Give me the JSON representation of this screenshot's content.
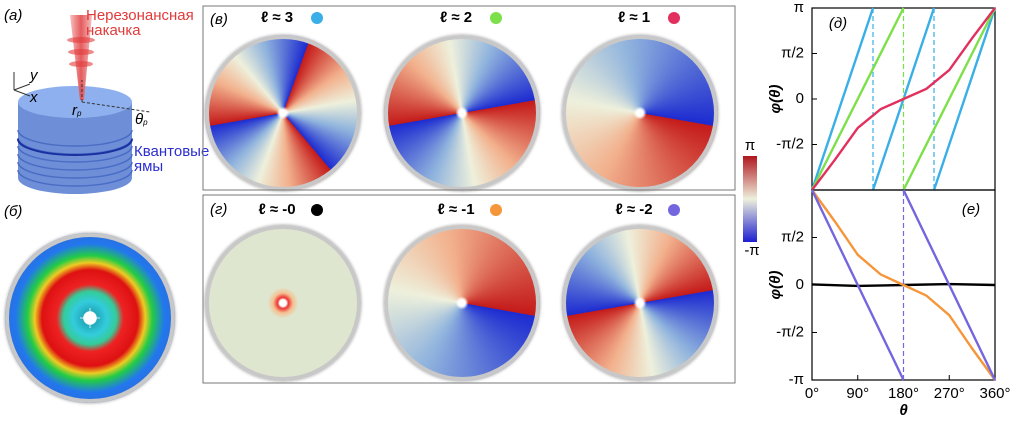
{
  "panel_a": {
    "label": "(а)",
    "pump_lines": [
      "Нерезонансная",
      "накачка"
    ],
    "axis_y": "y",
    "axis_x": "x",
    "radius": {
      "main": "r",
      "sub": "p"
    },
    "angle": {
      "main": "θ",
      "sub": "p"
    },
    "wells_lines": [
      "Квантовые",
      "ямы"
    ]
  },
  "panel_b": {
    "label": "(б)"
  },
  "panel_v": {
    "label": "(в)"
  },
  "panel_g": {
    "label": "(г)"
  },
  "colorbar": {
    "max_label": "π",
    "min_label": "-π"
  },
  "chart_data": [
    {
      "type": "line",
      "panel_label": "(д)",
      "ylabel": "φ(θ)",
      "xlim": [
        0,
        360
      ],
      "ylim": [
        -3.1416,
        3.1416
      ],
      "yticks": [
        {
          "value": 3.1416,
          "label": "π"
        },
        {
          "value": 1.5708,
          "label": "π/2"
        },
        0,
        {
          "value": -1.5708,
          "label": "-π/2"
        }
      ],
      "series": [
        {
          "name": "ℓ ≈ 3",
          "color": "#3aaee6",
          "x": [
            0,
            120,
            120,
            120,
            240,
            240,
            240,
            360
          ],
          "values": [
            -3.1416,
            3.1416,
            null,
            -3.1416,
            3.1416,
            null,
            -3.1416,
            3.1416
          ]
        },
        {
          "name": "ℓ ≈ 2",
          "color": "#7ddf4a",
          "x": [
            0,
            180,
            180,
            180,
            360
          ],
          "values": [
            -3.1416,
            3.1416,
            null,
            -3.1416,
            3.1416
          ]
        },
        {
          "name": "ℓ ≈ 1",
          "color": "#e2305e",
          "x": [
            0,
            45,
            90,
            135,
            180,
            225,
            270,
            315,
            360
          ],
          "values": [
            -3.1416,
            -2.1,
            -1.0,
            -0.35,
            0,
            0.35,
            1.0,
            2.1,
            3.1416
          ]
        }
      ]
    },
    {
      "type": "line",
      "panel_label": "(е)",
      "ylabel": "φ(θ)",
      "xlabel": "θ",
      "xlim": [
        0,
        360
      ],
      "ylim": [
        -3.1416,
        3.1416
      ],
      "xticks": [
        {
          "value": 0,
          "label": "0°"
        },
        {
          "value": 90,
          "label": "90°"
        },
        {
          "value": 180,
          "label": "180°"
        },
        {
          "value": 270,
          "label": "270°"
        },
        {
          "value": 360,
          "label": "360°"
        }
      ],
      "yticks": [
        {
          "value": 1.5708,
          "label": "π/2"
        },
        0,
        {
          "value": -1.5708,
          "label": "-π/2"
        },
        {
          "value": -3.1416,
          "label": "-π"
        }
      ],
      "series": [
        {
          "name": "ℓ ≈ -0",
          "color": "#000000",
          "x": [
            0,
            90,
            180,
            270,
            360
          ],
          "values": [
            0.02,
            -0.03,
            0,
            0.03,
            0
          ]
        },
        {
          "name": "ℓ ≈ -1",
          "color": "#f5963a",
          "x": [
            0,
            45,
            90,
            135,
            180,
            225,
            270,
            315,
            360
          ],
          "values": [
            3.1416,
            2.1,
            1.0,
            0.35,
            0,
            -0.35,
            -1.0,
            -2.1,
            -3.1416
          ]
        },
        {
          "name": "ℓ ≈ -2",
          "color": "#7466de",
          "x": [
            0,
            180,
            180,
            180,
            360
          ],
          "values": [
            3.1416,
            -3.1416,
            null,
            3.1416,
            -3.1416
          ]
        }
      ]
    }
  ]
}
